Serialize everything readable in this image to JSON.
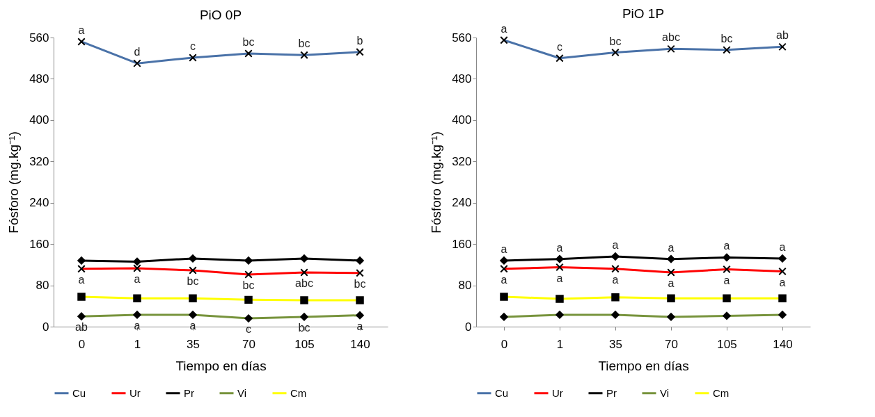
{
  "chart_data": [
    {
      "type": "line",
      "title": "PiO 0P",
      "xlabel": "Tiempo en días",
      "ylabel": "Fósforo  (mg.kg⁻¹)",
      "categories": [
        "0",
        "1",
        "35",
        "70",
        "105",
        "140"
      ],
      "ylim": [
        0,
        560
      ],
      "yticks": [
        0,
        80,
        160,
        240,
        320,
        400,
        480,
        560
      ],
      "grid": false,
      "legend": "bottom",
      "series": [
        {
          "name": "Cu",
          "color": "#4a72a8",
          "marker": "cross",
          "values": [
            552,
            510,
            521,
            529,
            526,
            532
          ]
        },
        {
          "name": "Ur",
          "color": "#ff0000",
          "marker": "cross",
          "values": [
            112,
            113,
            109,
            101,
            105,
            104
          ]
        },
        {
          "name": "Pr",
          "color": "#000000",
          "marker": "diamond",
          "values": [
            128,
            126,
            132,
            128,
            132,
            128
          ]
        },
        {
          "name": "Vi",
          "color": "#77933c",
          "marker": "diamond",
          "values": [
            20,
            23,
            23,
            16,
            19,
            22
          ]
        },
        {
          "name": "Cm",
          "color": "#ffff00",
          "marker": "square",
          "values": [
            58,
            55,
            55,
            52,
            51,
            51
          ]
        }
      ],
      "annotations": [
        {
          "text": "a",
          "x": "0",
          "y": 552
        },
        {
          "text": "d",
          "x": "1",
          "y": 510
        },
        {
          "text": "c",
          "x": "35",
          "y": 521
        },
        {
          "text": "bc",
          "x": "70",
          "y": 529
        },
        {
          "text": "bc",
          "x": "105",
          "y": 526
        },
        {
          "text": "b",
          "x": "140",
          "y": 532
        },
        {
          "text": "a",
          "x": "0",
          "y": 112
        },
        {
          "text": "a",
          "x": "1",
          "y": 113
        },
        {
          "text": "bc",
          "x": "35",
          "y": 109
        },
        {
          "text": "bc",
          "x": "70",
          "y": 101
        },
        {
          "text": "abc",
          "x": "105",
          "y": 105
        },
        {
          "text": "bc",
          "x": "140",
          "y": 104
        },
        {
          "text": "ab",
          "x": "0",
          "y": 20
        },
        {
          "text": "a",
          "x": "1",
          "y": 23
        },
        {
          "text": "a",
          "x": "35",
          "y": 23
        },
        {
          "text": "c",
          "x": "70",
          "y": 16
        },
        {
          "text": "bc",
          "x": "105",
          "y": 19
        },
        {
          "text": "a",
          "x": "140",
          "y": 22
        }
      ]
    },
    {
      "type": "line",
      "title": "PiO 1P",
      "xlabel": "Tiempo en  días",
      "ylabel": "Fósforo  (mg.kg⁻¹)",
      "categories": [
        "0",
        "1",
        "35",
        "70",
        "105",
        "140"
      ],
      "ylim": [
        0,
        560
      ],
      "yticks": [
        0,
        80,
        160,
        240,
        320,
        400,
        480,
        560
      ],
      "grid": false,
      "legend": "bottom",
      "series": [
        {
          "name": "Cu",
          "color": "#4a72a8",
          "marker": "cross",
          "values": [
            555,
            520,
            531,
            538,
            536,
            542
          ]
        },
        {
          "name": "Ur",
          "color": "#ff0000",
          "marker": "cross",
          "values": [
            112,
            115,
            112,
            105,
            111,
            107
          ]
        },
        {
          "name": "Pr",
          "color": "#000000",
          "marker": "diamond",
          "values": [
            128,
            131,
            136,
            131,
            134,
            132
          ]
        },
        {
          "name": "Vi",
          "color": "#77933c",
          "marker": "diamond",
          "values": [
            19,
            23,
            23,
            19,
            21,
            23
          ]
        },
        {
          "name": "Cm",
          "color": "#ffff00",
          "marker": "square",
          "values": [
            58,
            54,
            57,
            55,
            55,
            55
          ]
        }
      ],
      "annotations": [
        {
          "text": "a",
          "x": "0",
          "y": 555
        },
        {
          "text": "c",
          "x": "1",
          "y": 520
        },
        {
          "text": "bc",
          "x": "35",
          "y": 531
        },
        {
          "text": "abc",
          "x": "70",
          "y": 538
        },
        {
          "text": "bc",
          "x": "105",
          "y": 536
        },
        {
          "text": "ab",
          "x": "140",
          "y": 542
        },
        {
          "text": "a",
          "x": "0",
          "y": 128
        },
        {
          "text": "a",
          "x": "1",
          "y": 131
        },
        {
          "text": "a",
          "x": "35",
          "y": 136
        },
        {
          "text": "a",
          "x": "70",
          "y": 131
        },
        {
          "text": "a",
          "x": "105",
          "y": 134
        },
        {
          "text": "a",
          "x": "140",
          "y": 132
        },
        {
          "text": "a",
          "x": "0",
          "y": 112
        },
        {
          "text": "a",
          "x": "1",
          "y": 115
        },
        {
          "text": "a",
          "x": "35",
          "y": 112
        },
        {
          "text": "a",
          "x": "70",
          "y": 105
        },
        {
          "text": "a",
          "x": "105",
          "y": 111
        },
        {
          "text": "a",
          "x": "140",
          "y": 107
        }
      ]
    }
  ]
}
